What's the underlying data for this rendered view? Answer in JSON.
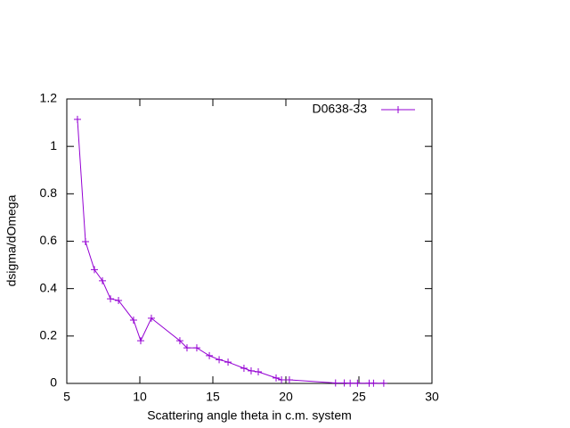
{
  "chart_data": {
    "type": "line",
    "xlabel": "Scattering angle theta in c.m. system",
    "ylabel": "dsigma/dOmega",
    "x": [
      5.73,
      6.28,
      6.89,
      7.44,
      7.99,
      8.54,
      9.57,
      10.06,
      10.79,
      12.74,
      13.23,
      13.9,
      14.76,
      15.43,
      16.04,
      17.13,
      17.62,
      18.11,
      19.33,
      19.7,
      20.24,
      23.4,
      24.0,
      24.4,
      24.9,
      25.7,
      26.0,
      26.7
    ],
    "series": [
      {
        "name": "D0638-33",
        "color": "#9400d3",
        "values": [
          1.114,
          0.598,
          0.48,
          0.433,
          0.357,
          0.35,
          0.267,
          0.18,
          0.275,
          0.18,
          0.15,
          0.15,
          0.117,
          0.1,
          0.09,
          0.064,
          0.053,
          0.049,
          0.023,
          0.015,
          0.015,
          0.002,
          0.002,
          0.001,
          0.001,
          0.001,
          0.001,
          0.001
        ]
      }
    ],
    "xlim": [
      5,
      30
    ],
    "xticks": [
      5,
      10,
      15,
      20,
      25,
      30
    ],
    "ylim": [
      0,
      1.2
    ],
    "yticks": [
      0,
      0.2,
      0.4,
      0.6,
      0.8,
      1,
      1.2
    ],
    "legend": "top-right"
  }
}
